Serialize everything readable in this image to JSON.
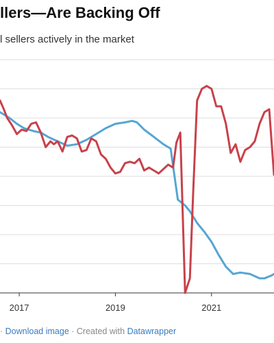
{
  "header": {
    "title": "llers—Are Backing Off",
    "subtitle": "l sellers actively in the market"
  },
  "footer": {
    "lead": "·",
    "download_label": "Download image",
    "separator": "·",
    "created_with": "Created with",
    "datawrapper_label": "Datawrapper"
  },
  "colors": {
    "blue_series": "#56a5d3",
    "red_series": "#c8414b",
    "grid": "#dddddd"
  },
  "chart_data": {
    "type": "line",
    "title": "llers—Are Backing Off",
    "subtitle": "l sellers actively in the market",
    "x_ticks": [
      "2017",
      "2019",
      "2021"
    ],
    "x_tick_values": [
      2017,
      2019,
      2021
    ],
    "xlim": [
      2016.6,
      2022.3
    ],
    "ylim": [
      0,
      8
    ],
    "grid": true,
    "series": [
      {
        "color": "#56a5d3",
        "x": [
          2016.6,
          2016.8,
          2016.95,
          2017.1,
          2017.3,
          2017.45,
          2017.6,
          2017.8,
          2018.0,
          2018.2,
          2018.4,
          2018.6,
          2018.8,
          2019.0,
          2019.2,
          2019.35,
          2019.45,
          2019.6,
          2019.8,
          2020.0,
          2020.15,
          2020.3,
          2020.45,
          2020.55,
          2020.7,
          2020.85,
          2021.0,
          2021.15,
          2021.3,
          2021.45,
          2021.6,
          2021.8,
          2022.0,
          2022.1,
          2022.25,
          2022.3
        ],
        "y": [
          6.2,
          6.0,
          5.8,
          5.65,
          5.55,
          5.5,
          5.35,
          5.2,
          5.05,
          5.1,
          5.25,
          5.45,
          5.65,
          5.8,
          5.85,
          5.9,
          5.85,
          5.6,
          5.35,
          5.1,
          4.95,
          3.2,
          3.0,
          2.8,
          2.4,
          2.1,
          1.75,
          1.3,
          0.9,
          0.65,
          0.7,
          0.65,
          0.5,
          0.5,
          0.6,
          0.65
        ]
      },
      {
        "color": "#c8414b",
        "x": [
          2016.6,
          2016.68,
          2016.75,
          2016.85,
          2016.95,
          2017.05,
          2017.15,
          2017.25,
          2017.35,
          2017.45,
          2017.55,
          2017.65,
          2017.72,
          2017.8,
          2017.9,
          2018.0,
          2018.1,
          2018.2,
          2018.3,
          2018.4,
          2018.5,
          2018.6,
          2018.7,
          2018.8,
          2018.9,
          2019.0,
          2019.1,
          2019.2,
          2019.3,
          2019.4,
          2019.5,
          2019.6,
          2019.7,
          2019.8,
          2019.9,
          2020.0,
          2020.1,
          2020.2,
          2020.27,
          2020.35,
          2020.45,
          2020.55,
          2020.62,
          2020.7,
          2020.8,
          2020.9,
          2021.0,
          2021.1,
          2021.2,
          2021.3,
          2021.4,
          2021.5,
          2021.6,
          2021.7,
          2021.8,
          2021.9,
          2022.0,
          2022.1,
          2022.2,
          2022.3
        ],
        "y": [
          6.6,
          6.3,
          6.0,
          5.75,
          5.45,
          5.6,
          5.55,
          5.8,
          5.85,
          5.5,
          5.0,
          5.2,
          5.1,
          5.2,
          4.85,
          5.35,
          5.4,
          5.3,
          4.85,
          4.9,
          5.3,
          5.2,
          4.75,
          4.6,
          4.3,
          4.1,
          4.15,
          4.45,
          4.5,
          4.45,
          4.6,
          4.2,
          4.3,
          4.2,
          4.1,
          4.25,
          4.4,
          4.3,
          5.15,
          5.5,
          0.0,
          0.5,
          3.5,
          6.6,
          7.0,
          7.1,
          7.0,
          6.4,
          6.4,
          5.8,
          4.8,
          5.1,
          4.5,
          4.9,
          5.0,
          5.2,
          5.8,
          6.2,
          6.3,
          4.05
        ]
      }
    ]
  }
}
